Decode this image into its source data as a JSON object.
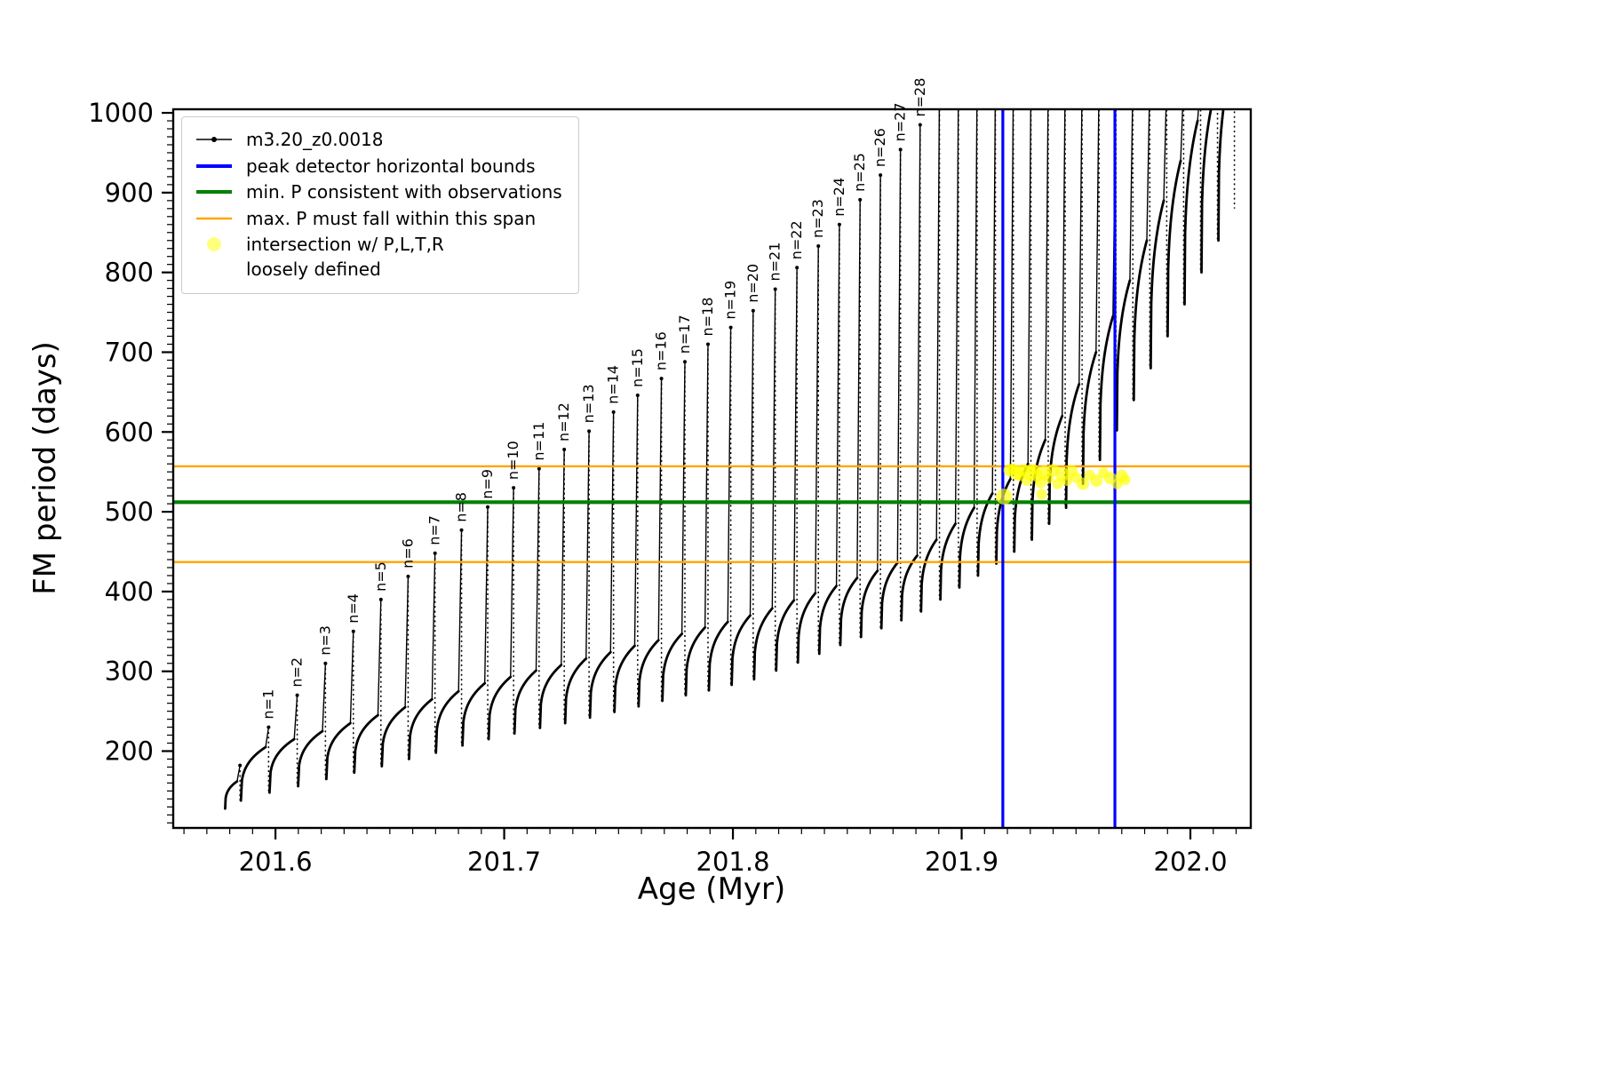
{
  "chart_data": {
    "type": "line",
    "title": "",
    "xlabel": "Age (Myr)",
    "ylabel": "FM period (days)",
    "xlim": [
      201.5553,
      202.0264
    ],
    "ylim": [
      103.7,
      1004.5
    ],
    "xticks": [
      201.6,
      201.7,
      201.8,
      201.9,
      202.0
    ],
    "xtick_labels": [
      "201.6",
      "201.7",
      "201.8",
      "201.9",
      "202.0"
    ],
    "yticks": [
      200,
      300,
      400,
      500,
      600,
      700,
      800,
      900,
      1000
    ],
    "ytick_labels": [
      "200",
      "300",
      "400",
      "500",
      "600",
      "700",
      "800",
      "900",
      "1000"
    ],
    "minor_x": {
      "start": 201.56,
      "end": 202.02,
      "step": 0.01
    },
    "minor_y": {
      "start": 110,
      "end": 1000,
      "step": 10
    },
    "grid": false,
    "series_name": "m3.20_z0.0018",
    "curve_color": "#000000",
    "curve_start": {
      "x": 201.578,
      "v": 128
    },
    "teeth": [
      [
        0,
        201.5845,
        182,
        162,
        138,
        ""
      ],
      [
        1,
        201.597,
        230,
        205,
        148,
        "n=1"
      ],
      [
        2,
        201.6095,
        270,
        215,
        156,
        "n=2"
      ],
      [
        3,
        201.62185,
        310,
        225,
        165,
        "n=3"
      ],
      [
        4,
        201.63405,
        350,
        235,
        173,
        "n=4"
      ],
      [
        5,
        201.6461,
        390,
        245,
        181,
        "n=5"
      ],
      [
        6,
        201.658,
        419,
        255,
        190,
        "n=6"
      ],
      [
        7,
        201.66975,
        448,
        265,
        198,
        "n=7"
      ],
      [
        8,
        201.68135,
        477,
        275,
        207,
        "n=8"
      ],
      [
        9,
        201.6928,
        506,
        285,
        215,
        "n=9"
      ],
      [
        10,
        201.7041,
        530,
        293,
        222,
        "n=10"
      ],
      [
        11,
        201.71525,
        554,
        301,
        229,
        "n=11"
      ],
      [
        12,
        201.72625,
        578,
        308,
        235,
        "n=12"
      ],
      [
        13,
        201.7371,
        601,
        316,
        242,
        "n=13"
      ],
      [
        14,
        201.7478,
        625,
        324,
        249,
        "n=14"
      ],
      [
        15,
        201.75835,
        646,
        332,
        256,
        "n=15"
      ],
      [
        16,
        201.76875,
        667,
        339,
        263,
        "n=16"
      ],
      [
        17,
        201.779,
        688,
        347,
        270,
        "n=17"
      ],
      [
        18,
        201.7891,
        710,
        355,
        276,
        "n=18"
      ],
      [
        19,
        201.79905,
        731,
        362,
        283,
        "n=19"
      ],
      [
        20,
        201.80885,
        752,
        370,
        290,
        "n=20"
      ],
      [
        21,
        201.8185,
        779,
        379,
        301,
        "n=21"
      ],
      [
        22,
        201.828,
        806,
        389,
        311,
        "n=22"
      ],
      [
        23,
        201.83735,
        833,
        398,
        322,
        "n=23"
      ],
      [
        24,
        201.84655,
        860,
        407,
        333,
        "n=24"
      ],
      [
        25,
        201.8556,
        891,
        417,
        343,
        "n=25"
      ],
      [
        26,
        201.8645,
        922,
        426,
        354,
        "n=26"
      ],
      [
        27,
        201.87325,
        954,
        436,
        364,
        "n=27"
      ],
      [
        28,
        201.88185,
        985,
        445,
        375,
        "n=28"
      ],
      [
        29,
        201.8903,
        1040,
        465,
        390,
        ""
      ],
      [
        30,
        201.8986,
        1040,
        485,
        405,
        ""
      ],
      [
        31,
        201.90675,
        1040,
        505,
        420,
        ""
      ],
      [
        32,
        201.91475,
        1040,
        523,
        435,
        ""
      ],
      [
        33,
        201.9226,
        1040,
        541,
        450,
        ""
      ],
      [
        34,
        201.9303,
        1040,
        560,
        465,
        ""
      ],
      [
        35,
        201.93785,
        1040,
        590,
        485,
        ""
      ],
      [
        36,
        201.94525,
        1040,
        620,
        505,
        ""
      ],
      [
        37,
        201.95265,
        1040,
        660,
        535,
        ""
      ],
      [
        38,
        201.96005,
        1040,
        700,
        565,
        ""
      ],
      [
        39,
        201.96745,
        1040,
        745,
        602,
        ""
      ],
      [
        40,
        201.97485,
        1040,
        790,
        640,
        ""
      ],
      [
        41,
        201.98225,
        1040,
        840,
        680,
        ""
      ],
      [
        42,
        201.98965,
        1040,
        890,
        720,
        ""
      ],
      [
        43,
        201.99705,
        1040,
        940,
        760,
        ""
      ],
      [
        44,
        202.00445,
        1040,
        990,
        800,
        ""
      ],
      [
        45,
        202.01185,
        1060,
        1025,
        840,
        ""
      ],
      [
        46,
        202.01925,
        1080,
        1060,
        880,
        ""
      ]
    ],
    "hlines": [
      {
        "name": "min-p-consistent",
        "y": 512,
        "color": "#008000",
        "lw": 4.2
      },
      {
        "name": "max-p-span-upper",
        "y": 557,
        "color": "#ffa500",
        "lw": 2.4
      },
      {
        "name": "max-p-span-lower",
        "y": 437,
        "color": "#ffa500",
        "lw": 2.4
      }
    ],
    "vlines": [
      {
        "name": "peak-bound-left",
        "x": 201.918,
        "color": "#0000ff",
        "lw": 3.2
      },
      {
        "name": "peak-bound-right",
        "x": 201.967,
        "color": "#0000ff",
        "lw": 3.2
      }
    ],
    "scatter": {
      "name": "intersection-points",
      "color": "#ffff00",
      "alpha": 0.65,
      "points": [
        [
          201.9185,
          519,
          9
        ],
        [
          201.921,
          552,
          7
        ],
        [
          201.9225,
          554,
          6
        ],
        [
          201.924,
          549,
          8
        ],
        [
          201.9255,
          545,
          6
        ],
        [
          201.927,
          552,
          7
        ],
        [
          201.9285,
          539,
          6
        ],
        [
          201.93,
          549,
          9
        ],
        [
          201.9315,
          553,
          6
        ],
        [
          201.933,
          545,
          7
        ],
        [
          201.9345,
          536,
          6
        ],
        [
          201.935,
          522,
          6
        ],
        [
          201.936,
          549,
          8
        ],
        [
          201.938,
          542,
          6
        ],
        [
          201.94,
          552,
          7
        ],
        [
          201.942,
          535,
          6
        ],
        [
          201.944,
          547,
          8
        ],
        [
          201.946,
          539,
          6
        ],
        [
          201.948,
          551,
          7
        ],
        [
          201.95,
          543,
          6
        ],
        [
          201.953,
          535,
          7
        ],
        [
          201.956,
          546,
          6
        ],
        [
          201.959,
          539,
          7
        ],
        [
          201.962,
          549,
          6
        ],
        [
          201.965,
          542,
          7
        ],
        [
          201.968,
          535,
          6
        ],
        [
          201.97,
          545,
          7
        ],
        [
          201.9715,
          540,
          6
        ]
      ]
    },
    "legend": {
      "entries": [
        {
          "type": "line-marker",
          "color": "#000000",
          "lw": 1.6,
          "lines": [
            "m3.20_z0.0018"
          ]
        },
        {
          "type": "line",
          "color": "#0000ff",
          "lw": 4,
          "lines": [
            "peak detector horizontal bounds"
          ]
        },
        {
          "type": "line",
          "color": "#008000",
          "lw": 4,
          "lines": [
            "min. P consistent with observations"
          ]
        },
        {
          "type": "line",
          "color": "#ffa500",
          "lw": 2.4,
          "lines": [
            "max. P must fall within this span"
          ]
        },
        {
          "type": "dot",
          "color": "#ffff00",
          "alpha": 0.5,
          "lines": [
            "intersection w/ P,L,T,R",
            "loosely defined"
          ]
        }
      ]
    }
  }
}
